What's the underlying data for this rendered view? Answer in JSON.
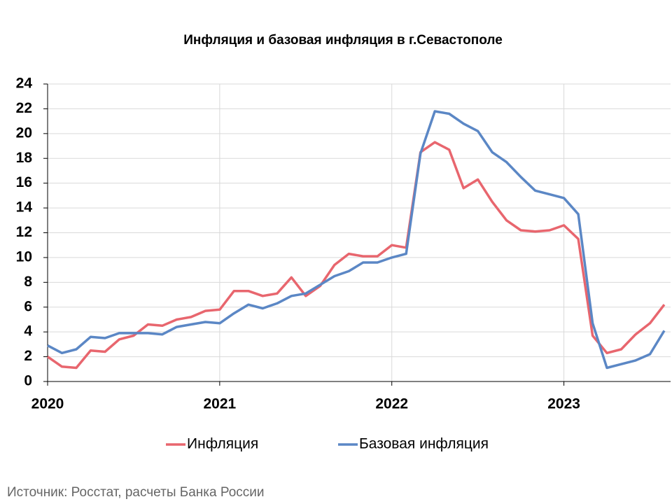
{
  "chart_data": {
    "type": "line",
    "title": "Инфляция и базовая инфляция в г.Севастополе",
    "categories": [
      "2020",
      null,
      null,
      null,
      null,
      null,
      null,
      null,
      null,
      null,
      null,
      null,
      "2021",
      null,
      null,
      null,
      null,
      null,
      null,
      null,
      null,
      null,
      null,
      null,
      "2022",
      null,
      null,
      null,
      null,
      null,
      null,
      null,
      null,
      null,
      null,
      null,
      "2023",
      null,
      null,
      null,
      null,
      null,
      null,
      null
    ],
    "series": [
      {
        "name": "Инфляция",
        "color": "#e8666e",
        "values": [
          2.0,
          1.2,
          1.1,
          2.5,
          2.4,
          3.4,
          3.7,
          4.6,
          4.5,
          5.0,
          5.2,
          5.7,
          5.8,
          7.3,
          7.3,
          6.9,
          7.1,
          8.4,
          6.9,
          7.7,
          9.4,
          10.3,
          10.1,
          10.1,
          11.0,
          10.8,
          18.5,
          19.3,
          18.7,
          15.6,
          16.3,
          14.5,
          13.0,
          12.2,
          12.1,
          12.2,
          12.6,
          11.5,
          3.7,
          2.3,
          2.6,
          3.8,
          4.7,
          6.2
        ]
      },
      {
        "name": "Базовая инфляция",
        "color": "#5b87c5",
        "values": [
          2.9,
          2.3,
          2.6,
          3.6,
          3.5,
          3.9,
          3.9,
          3.9,
          3.8,
          4.4,
          4.6,
          4.8,
          4.7,
          5.5,
          6.2,
          5.9,
          6.3,
          6.9,
          7.1,
          7.8,
          8.5,
          8.9,
          9.6,
          9.6,
          10.0,
          10.3,
          18.4,
          21.8,
          21.6,
          20.8,
          20.2,
          18.5,
          17.7,
          16.5,
          15.4,
          15.1,
          14.8,
          13.5,
          4.7,
          1.1,
          1.4,
          1.7,
          2.2,
          4.1
        ]
      }
    ],
    "ylim": [
      0,
      24
    ],
    "yticks": [
      0,
      2,
      4,
      6,
      8,
      10,
      12,
      14,
      16,
      18,
      20,
      22,
      24
    ],
    "grid": true,
    "legend": "bottom",
    "source": "Источник: Росстат, расчеты Банка России"
  }
}
